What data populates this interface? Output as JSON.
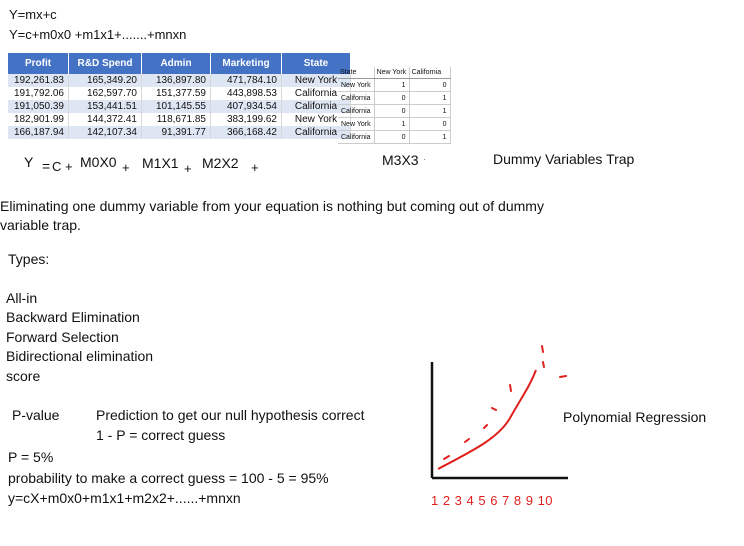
{
  "formulas": {
    "line1": "Y=mx+c",
    "line2": "Y=c+m0x0 +m1x1+.......+mnxn"
  },
  "main_table": {
    "headers": [
      "Profit",
      "R&D Spend",
      "Admin",
      "Marketing",
      "State"
    ],
    "rows": [
      [
        "192,261.83",
        "165,349.20",
        "136,897.80",
        "471,784.10",
        "New York"
      ],
      [
        "191,792.06",
        "162,597.70",
        "151,377.59",
        "443,898.53",
        "California"
      ],
      [
        "191,050.39",
        "153,441.51",
        "101,145.55",
        "407,934.54",
        "California"
      ],
      [
        "182,901.99",
        "144,372.41",
        "118,671.85",
        "383,199.62",
        "New York"
      ],
      [
        "166,187.94",
        "142,107.34",
        "91,391.77",
        "366,168.42",
        "California"
      ]
    ]
  },
  "dummy_table": {
    "headers": [
      "State",
      "New York",
      "California"
    ],
    "rows": [
      [
        "New York",
        "1",
        "0"
      ],
      [
        "California",
        "0",
        "1"
      ],
      [
        "California",
        "0",
        "1"
      ],
      [
        "New York",
        "1",
        "0"
      ],
      [
        "California",
        "0",
        "1"
      ]
    ]
  },
  "equation": {
    "y": "Y",
    "eq": "=",
    "c_plus": "C +",
    "t0": "M0X0",
    "p1": "+",
    "t1": "M1X1",
    "p2": "+",
    "t2": "M2X2",
    "p3": "+",
    "t3": "M3X3",
    "trap_label": "Dummy Variables Trap"
  },
  "explanation": {
    "line1": "Eliminating one dummy variable from your equation is nothing but coming out of dummy",
    "line2": "variable trap."
  },
  "types": {
    "heading": "Types:",
    "items": [
      "All-in",
      "Backward Elimination",
      "Forward Selection",
      "Bidirectional elimination",
      "score"
    ]
  },
  "pvalue": {
    "label": "P-value",
    "desc": "Prediction to get our null hypothesis correct",
    "formula": "1 - P = correct guess",
    "p": "P = 5%",
    "prob": "probability to make a correct guess = 100 - 5 = 95%",
    "poly_eq": "y=cX+m0x0+m1x1+m2x2+......+mnxn"
  },
  "chart": {
    "label": "Polynomial Regression",
    "axis_numbers": "1 2 3 4 5 6 7 8 9 10",
    "color": "#e0201c"
  }
}
